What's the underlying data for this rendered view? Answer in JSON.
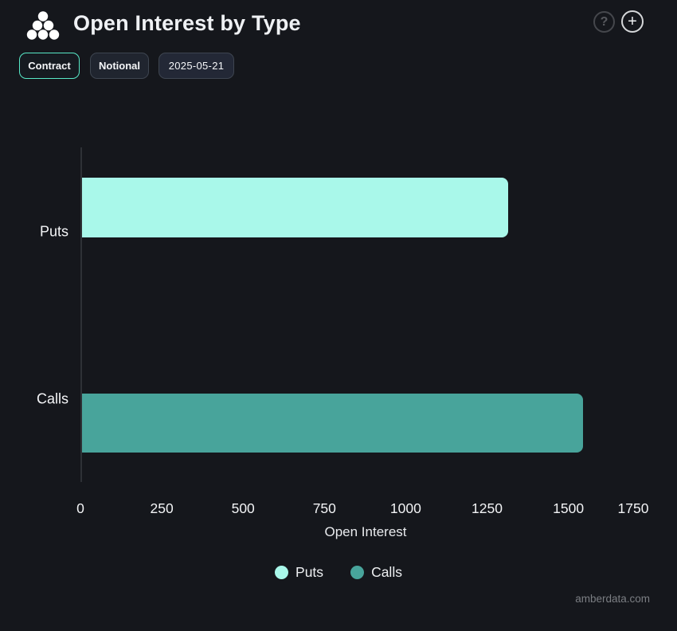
{
  "header": {
    "title": "Open Interest by Type",
    "help_glyph": "?",
    "add_glyph": "+"
  },
  "toolbar": {
    "buttons": [
      {
        "label": "Contract",
        "active": true
      },
      {
        "label": "Notional",
        "active": false
      },
      {
        "label": "2025-05-21",
        "active": false
      }
    ]
  },
  "chart_data": {
    "type": "bar",
    "orientation": "horizontal",
    "title": "Open Interest by Type",
    "categories": [
      "Puts",
      "Calls"
    ],
    "values": [
      1310,
      1540
    ],
    "colors": [
      "#a9f8ea",
      "#48a49b"
    ],
    "xlabel": "Open Interest",
    "xlim": [
      0,
      1750
    ],
    "xticks": [
      0,
      250,
      500,
      750,
      1000,
      1250,
      1500,
      1750
    ],
    "grid": false,
    "legend": [
      "Puts",
      "Calls"
    ],
    "legend_position": "bottom"
  },
  "footer": {
    "watermark": "amberdata.com"
  },
  "colors": {
    "background": "#15171c",
    "puts_bar": "#a9f8ea",
    "calls_bar": "#48a49b",
    "active_pill_border": "#58e8c7",
    "axis_line": "#2e3136"
  }
}
